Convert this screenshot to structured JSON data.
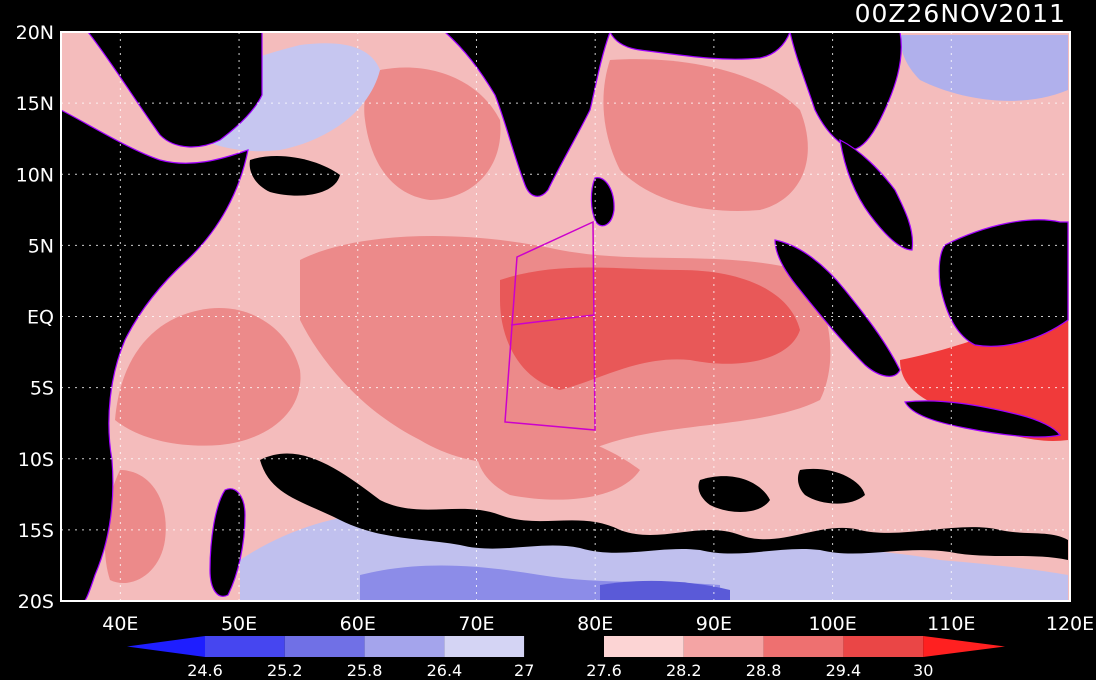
{
  "map": {
    "title": "00Z26NOV2011",
    "lat_labels": [
      "20N",
      "15N",
      "10N",
      "5N",
      "EQ",
      "5S",
      "10S",
      "15S",
      "20S"
    ],
    "lon_labels": [
      "40E",
      "50E",
      "60E",
      "70E",
      "80E",
      "90E",
      "100E",
      "110E",
      "120E"
    ],
    "lat_range": [
      -20,
      20
    ],
    "lon_range": [
      35,
      120
    ],
    "grid": true
  },
  "colorbar": {
    "labels": [
      "24.6",
      "25.2",
      "25.8",
      "26.4",
      "27",
      "27.6",
      "28.2",
      "28.8",
      "29.4",
      "30"
    ],
    "colors": [
      "#1e1eff",
      "#4646f0",
      "#7070e6",
      "#a4a4ec",
      "#d4d4f4",
      "#000000",
      "#fcd4d4",
      "#f4a4a4",
      "#ee7070",
      "#ea4646",
      "#ff2020"
    ]
  },
  "palette": {
    "land": "#000000",
    "coast": "#a000ff",
    "box": "#cc00cc",
    "grid": "#ffffff"
  }
}
